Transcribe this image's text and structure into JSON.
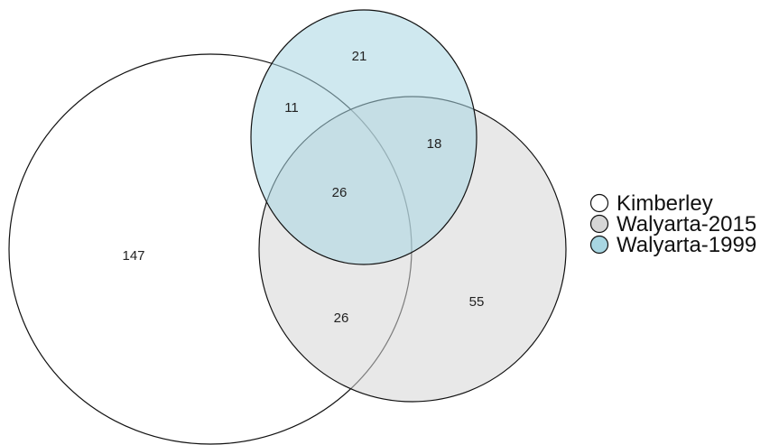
{
  "diagram": {
    "type": "venn3",
    "sets": [
      {
        "name": "Kimberley",
        "color": "#ffffff"
      },
      {
        "name": "Walyarta-2015",
        "color": "#d6d6d6"
      },
      {
        "name": "Walyarta-1999",
        "color": "#a8d6e2"
      }
    ],
    "regions": {
      "kimberley_only": "147",
      "walyarta2015_only": "55",
      "walyarta1999_only": "21",
      "kimberley_walyarta1999": "11",
      "walyarta2015_walyarta1999": "18",
      "kimberley_walyarta2015": "26",
      "all_three": "26"
    },
    "outline_color": "#111111"
  }
}
